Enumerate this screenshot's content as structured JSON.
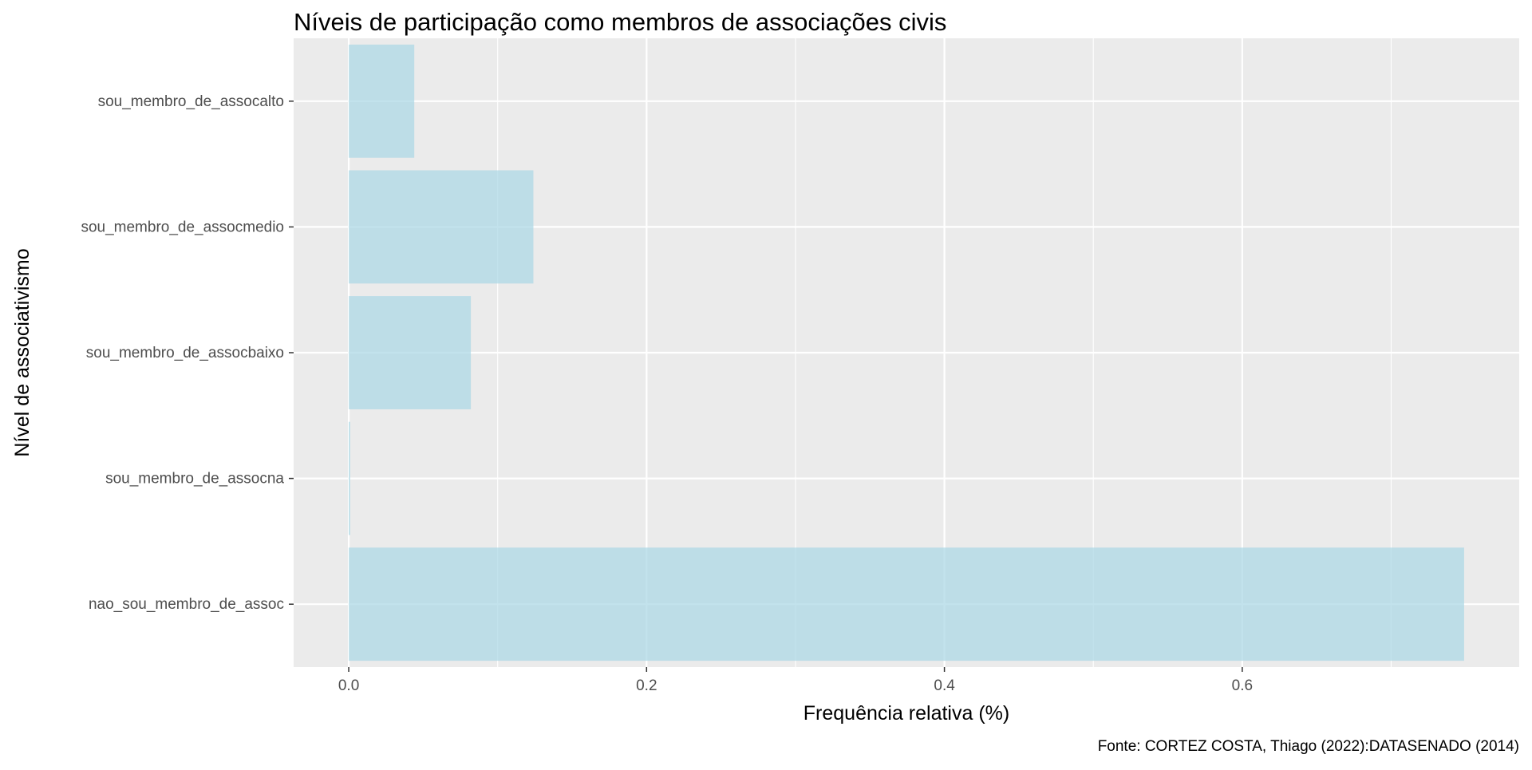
{
  "chart_data": {
    "type": "bar",
    "orientation": "horizontal",
    "title": "Níveis de participação como membros de associações civis",
    "xlabel": "Frequência relativa (%)",
    "ylabel": "Nível de associativismo",
    "caption": "Fonte: CORTEZ COSTA, Thiago (2022):DATASENADO (2014)",
    "categories": [
      "nao_sou_membro_de_assoc",
      "sou_membro_de_assocna",
      "sou_membro_de_assocbaixo",
      "sou_membro_de_assocmedio",
      "sou_membro_de_assocalto"
    ],
    "values": [
      0.749,
      0.001,
      0.082,
      0.124,
      0.044
    ],
    "xlim": [
      -0.037,
      0.786
    ],
    "x_ticks": [
      0.0,
      0.2,
      0.4,
      0.6
    ],
    "x_tick_labels": [
      "0.0",
      "0.2",
      "0.4",
      "0.6"
    ],
    "grid": true,
    "colors": {
      "bar": "#add8e6",
      "panel_background": "#ebebeb",
      "grid": "#ffffff",
      "text": "#000000",
      "tick_text": "#4d4d4d"
    }
  }
}
